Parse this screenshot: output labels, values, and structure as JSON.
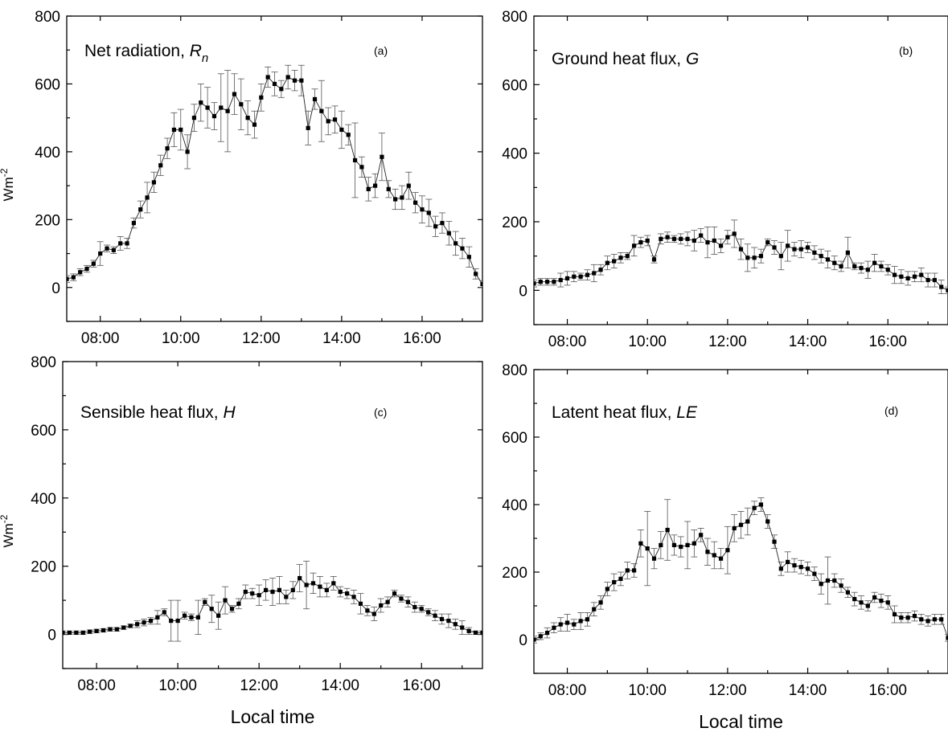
{
  "chart_data": [
    {
      "type": "scatter",
      "title": "Net radiation, Rn",
      "title_text": "Net radiation, ",
      "title_var": "R",
      "title_sub": "n",
      "panel_label": "(a)",
      "xlabel": "",
      "ylabel": "Wm-2",
      "ylabel_base": "Wm",
      "ylabel_sup": "-2",
      "xlim": [
        "07:10",
        "17:30"
      ],
      "ylim": [
        -100,
        800
      ],
      "xticks": [
        "08:00",
        "10:00",
        "12:00",
        "14:00",
        "16:00"
      ],
      "yticks": [
        "0",
        "200",
        "400",
        "600",
        "800"
      ],
      "error_bars": true,
      "x": [
        "07:10",
        "07:20",
        "07:30",
        "07:40",
        "07:50",
        "08:00",
        "08:10",
        "08:20",
        "08:30",
        "08:40",
        "08:50",
        "09:00",
        "09:10",
        "09:20",
        "09:30",
        "09:40",
        "09:50",
        "10:00",
        "10:10",
        "10:20",
        "10:30",
        "10:40",
        "10:50",
        "11:00",
        "11:10",
        "11:20",
        "11:30",
        "11:40",
        "11:50",
        "12:00",
        "12:10",
        "12:20",
        "12:30",
        "12:40",
        "12:50",
        "13:00",
        "13:10",
        "13:20",
        "13:30",
        "13:40",
        "13:50",
        "14:00",
        "14:10",
        "14:20",
        "14:30",
        "14:40",
        "14:50",
        "15:00",
        "15:10",
        "15:20",
        "15:30",
        "15:40",
        "15:50",
        "16:00",
        "16:10",
        "16:20",
        "16:30",
        "16:40",
        "16:50",
        "17:00",
        "17:10",
        "17:20",
        "17:30"
      ],
      "y": [
        25,
        30,
        45,
        55,
        70,
        100,
        115,
        110,
        130,
        130,
        190,
        230,
        265,
        310,
        360,
        410,
        465,
        465,
        400,
        500,
        545,
        530,
        505,
        530,
        520,
        570,
        540,
        500,
        480,
        560,
        620,
        600,
        585,
        620,
        610,
        610,
        470,
        555,
        520,
        490,
        495,
        465,
        450,
        375,
        355,
        290,
        300,
        385,
        290,
        260,
        265,
        300,
        250,
        230,
        220,
        180,
        190,
        160,
        130,
        115,
        90,
        40,
        10
      ],
      "err": [
        10,
        10,
        10,
        10,
        10,
        35,
        10,
        10,
        20,
        15,
        15,
        25,
        45,
        30,
        30,
        30,
        50,
        60,
        50,
        40,
        55,
        60,
        40,
        100,
        120,
        60,
        75,
        50,
        40,
        40,
        30,
        35,
        25,
        35,
        30,
        45,
        50,
        30,
        90,
        40,
        40,
        55,
        30,
        110,
        30,
        35,
        35,
        70,
        25,
        30,
        35,
        40,
        30,
        40,
        40,
        30,
        30,
        35,
        35,
        30,
        30,
        15,
        10
      ]
    },
    {
      "type": "scatter",
      "title": "Ground heat flux, G",
      "title_text": "Ground heat flux, ",
      "title_var": "G",
      "title_sub": "",
      "panel_label": "(b)",
      "xlabel": "",
      "ylabel": "",
      "ylabel_base": "",
      "ylabel_sup": "",
      "xlim": [
        "07:10",
        "17:30"
      ],
      "ylim": [
        -100,
        800
      ],
      "xticks": [
        "08:00",
        "10:00",
        "12:00",
        "14:00",
        "16:00"
      ],
      "yticks": [
        "0",
        "200",
        "400",
        "600",
        "800"
      ],
      "error_bars": true,
      "x": [
        "07:10",
        "07:20",
        "07:30",
        "07:40",
        "07:50",
        "08:00",
        "08:10",
        "08:20",
        "08:30",
        "08:40",
        "08:50",
        "09:00",
        "09:10",
        "09:20",
        "09:30",
        "09:40",
        "09:50",
        "10:00",
        "10:10",
        "10:20",
        "10:30",
        "10:40",
        "10:50",
        "11:00",
        "11:10",
        "11:20",
        "11:30",
        "11:40",
        "11:50",
        "12:00",
        "12:10",
        "12:20",
        "12:30",
        "12:40",
        "12:50",
        "13:00",
        "13:10",
        "13:20",
        "13:30",
        "13:40",
        "13:50",
        "14:00",
        "14:10",
        "14:20",
        "14:30",
        "14:40",
        "14:50",
        "15:00",
        "15:10",
        "15:20",
        "15:30",
        "15:40",
        "15:50",
        "16:00",
        "16:10",
        "16:20",
        "16:30",
        "16:40",
        "16:50",
        "17:00",
        "17:10",
        "17:20",
        "17:30"
      ],
      "y": [
        20,
        25,
        25,
        25,
        30,
        35,
        40,
        40,
        45,
        50,
        60,
        80,
        85,
        95,
        100,
        130,
        140,
        145,
        90,
        150,
        155,
        150,
        150,
        150,
        145,
        160,
        140,
        145,
        130,
        155,
        165,
        120,
        95,
        95,
        100,
        140,
        125,
        100,
        130,
        120,
        120,
        125,
        110,
        100,
        90,
        80,
        70,
        110,
        70,
        65,
        60,
        80,
        70,
        60,
        45,
        40,
        35,
        40,
        45,
        30,
        30,
        10,
        0
      ],
      "err": [
        10,
        10,
        10,
        10,
        20,
        20,
        15,
        10,
        15,
        25,
        15,
        20,
        20,
        15,
        10,
        30,
        15,
        15,
        10,
        15,
        15,
        10,
        15,
        20,
        30,
        20,
        45,
        40,
        20,
        20,
        40,
        30,
        40,
        30,
        20,
        10,
        20,
        40,
        45,
        20,
        25,
        15,
        20,
        20,
        25,
        20,
        15,
        45,
        10,
        15,
        25,
        25,
        15,
        15,
        25,
        20,
        20,
        15,
        20,
        20,
        20,
        20,
        10
      ]
    },
    {
      "type": "scatter",
      "title": "Sensible heat flux, H",
      "title_text": "Sensible heat flux, ",
      "title_var": "H",
      "title_sub": "",
      "panel_label": "(c)",
      "xlabel": "Local time",
      "ylabel": "Wm-2",
      "ylabel_base": "Wm",
      "ylabel_sup": "-2",
      "xlim": [
        "07:10",
        "17:30"
      ],
      "ylim": [
        -100,
        800
      ],
      "xticks": [
        "08:00",
        "10:00",
        "12:00",
        "14:00",
        "16:00"
      ],
      "yticks": [
        "0",
        "200",
        "400",
        "600",
        "800"
      ],
      "error_bars": true,
      "x": [
        "07:10",
        "07:20",
        "07:30",
        "07:40",
        "07:50",
        "08:00",
        "08:10",
        "08:20",
        "08:30",
        "08:40",
        "08:50",
        "09:00",
        "09:10",
        "09:20",
        "09:30",
        "09:40",
        "09:50",
        "10:00",
        "10:10",
        "10:20",
        "10:30",
        "10:40",
        "10:50",
        "11:00",
        "11:10",
        "11:20",
        "11:30",
        "11:40",
        "11:50",
        "12:00",
        "12:10",
        "12:20",
        "12:30",
        "12:40",
        "12:50",
        "13:00",
        "13:10",
        "13:20",
        "13:30",
        "13:40",
        "13:50",
        "14:00",
        "14:10",
        "14:20",
        "14:30",
        "14:40",
        "14:50",
        "15:00",
        "15:10",
        "15:20",
        "15:30",
        "15:40",
        "15:50",
        "16:00",
        "16:10",
        "16:20",
        "16:30",
        "16:40",
        "16:50",
        "17:00",
        "17:10",
        "17:20",
        "17:30"
      ],
      "y": [
        5,
        5,
        5,
        5,
        8,
        10,
        12,
        15,
        15,
        20,
        25,
        30,
        35,
        40,
        50,
        65,
        40,
        40,
        55,
        50,
        50,
        95,
        75,
        55,
        100,
        75,
        90,
        125,
        120,
        115,
        130,
        125,
        130,
        110,
        130,
        165,
        145,
        150,
        140,
        130,
        150,
        125,
        120,
        110,
        90,
        70,
        60,
        85,
        95,
        120,
        105,
        95,
        80,
        75,
        65,
        55,
        45,
        40,
        30,
        20,
        10,
        5,
        5
      ],
      "err": [
        5,
        5,
        5,
        5,
        5,
        5,
        5,
        5,
        5,
        5,
        5,
        10,
        10,
        10,
        20,
        10,
        60,
        60,
        10,
        10,
        50,
        10,
        40,
        40,
        40,
        10,
        15,
        20,
        15,
        30,
        30,
        40,
        40,
        20,
        25,
        40,
        70,
        30,
        30,
        20,
        20,
        15,
        15,
        20,
        30,
        15,
        20,
        20,
        15,
        10,
        10,
        15,
        15,
        10,
        10,
        15,
        15,
        20,
        15,
        20,
        10,
        5,
        5
      ]
    },
    {
      "type": "scatter",
      "title": "Latent heat flux, LE",
      "title_text": "Latent heat flux, ",
      "title_var": "LE",
      "title_sub": "",
      "panel_label": "(d)",
      "xlabel": "Local time",
      "ylabel": "",
      "ylabel_base": "",
      "ylabel_sup": "",
      "xlim": [
        "07:10",
        "17:30"
      ],
      "ylim": [
        -100,
        800
      ],
      "xticks": [
        "08:00",
        "10:00",
        "12:00",
        "14:00",
        "16:00"
      ],
      "yticks": [
        "0",
        "200",
        "400",
        "600",
        "800"
      ],
      "error_bars": true,
      "x": [
        "07:10",
        "07:20",
        "07:30",
        "07:40",
        "07:50",
        "08:00",
        "08:10",
        "08:20",
        "08:30",
        "08:40",
        "08:50",
        "09:00",
        "09:10",
        "09:20",
        "09:30",
        "09:40",
        "09:50",
        "10:00",
        "10:10",
        "10:20",
        "10:30",
        "10:40",
        "10:50",
        "11:00",
        "11:10",
        "11:20",
        "11:30",
        "11:40",
        "11:50",
        "12:00",
        "12:10",
        "12:20",
        "12:30",
        "12:40",
        "12:50",
        "13:00",
        "13:10",
        "13:20",
        "13:30",
        "13:40",
        "13:50",
        "14:00",
        "14:10",
        "14:20",
        "14:30",
        "14:40",
        "14:50",
        "15:00",
        "15:10",
        "15:20",
        "15:30",
        "15:40",
        "15:50",
        "16:00",
        "16:10",
        "16:20",
        "16:30",
        "16:40",
        "16:50",
        "17:00",
        "17:10",
        "17:20",
        "17:30"
      ],
      "y": [
        0,
        10,
        20,
        35,
        45,
        50,
        45,
        55,
        60,
        90,
        110,
        150,
        170,
        180,
        205,
        205,
        285,
        270,
        240,
        280,
        325,
        280,
        275,
        280,
        285,
        310,
        260,
        250,
        240,
        265,
        330,
        340,
        350,
        390,
        400,
        350,
        290,
        210,
        230,
        220,
        215,
        210,
        195,
        165,
        175,
        175,
        160,
        140,
        120,
        110,
        100,
        125,
        115,
        110,
        75,
        65,
        65,
        70,
        60,
        55,
        60,
        60,
        5
      ],
      "err": [
        10,
        10,
        15,
        15,
        20,
        25,
        15,
        25,
        20,
        20,
        20,
        20,
        25,
        20,
        25,
        20,
        40,
        110,
        30,
        40,
        90,
        30,
        30,
        70,
        40,
        20,
        40,
        40,
        30,
        70,
        40,
        40,
        40,
        20,
        20,
        20,
        20,
        20,
        30,
        20,
        20,
        20,
        20,
        30,
        70,
        20,
        20,
        15,
        20,
        20,
        15,
        15,
        20,
        20,
        25,
        15,
        15,
        15,
        15,
        15,
        15,
        15,
        10
      ]
    }
  ]
}
